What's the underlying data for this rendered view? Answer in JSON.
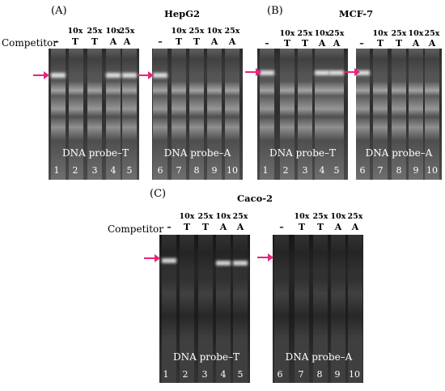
{
  "panels": {
    "A": {
      "letter": "(A)",
      "cell": "HepG2"
    },
    "B": {
      "letter": "(B)",
      "cell": "MCF-7"
    },
    "C": {
      "letter": "(C)",
      "cell": "Caco-2"
    }
  },
  "competitor_label": "Competitor",
  "lane_header": {
    "conc": [
      "",
      "10x",
      "25x",
      "10x",
      "25x"
    ],
    "cond": [
      "–",
      "T",
      "T",
      "A",
      "A"
    ]
  },
  "probes": {
    "T": "DNA probe–T",
    "A": "DNA probe–A"
  },
  "lane_numbers": {
    "left": [
      "1",
      "2",
      "3",
      "4",
      "5"
    ],
    "right": [
      "6",
      "7",
      "8",
      "9",
      "10"
    ]
  },
  "colors": {
    "arrow": "#e8257a",
    "gel": "#2e2e2e"
  }
}
